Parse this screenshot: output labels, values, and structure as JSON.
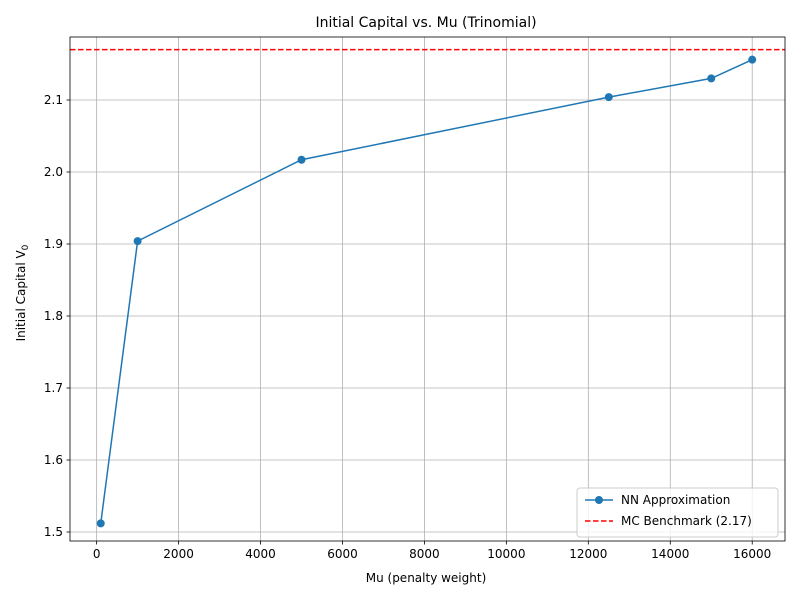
{
  "chart_data": {
    "type": "line",
    "title": "Initial Capital vs. Mu (Trinomial)",
    "xlabel": "Mu (penalty weight)",
    "ylabel": "Initial Capital V",
    "ylabel_subscript": "0",
    "xlim": [
      -650,
      16800
    ],
    "ylim": [
      1.4875,
      2.1875
    ],
    "xticks": [
      0,
      2000,
      4000,
      6000,
      8000,
      10000,
      12000,
      14000,
      16000
    ],
    "yticks": [
      1.5,
      1.6,
      1.7,
      1.8,
      1.9,
      2.0,
      2.1
    ],
    "ytick_labels": [
      "1.5",
      "1.6",
      "1.7",
      "1.8",
      "1.9",
      "2.0",
      "2.1"
    ],
    "grid": true,
    "legend_position": "lower-right",
    "series": [
      {
        "name": "NN Approximation",
        "color": "#1f77b4",
        "marker": "circle",
        "x": [
          100,
          1000,
          5000,
          12500,
          15000,
          16000
        ],
        "y": [
          1.512,
          1.904,
          2.017,
          2.104,
          2.13,
          2.156
        ]
      }
    ],
    "reference_lines": [
      {
        "name": "MC Benchmark (2.17)",
        "y": 2.17,
        "color": "#ff0000",
        "style": "dashed"
      }
    ]
  }
}
